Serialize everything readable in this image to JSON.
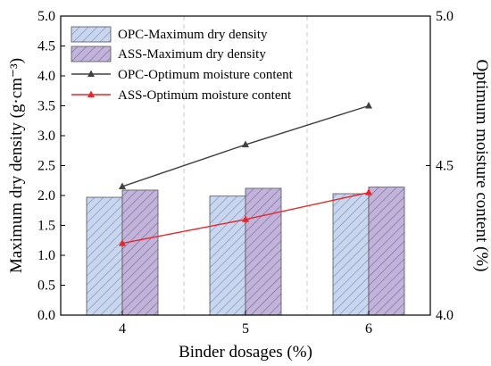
{
  "chart_data": {
    "type": "bar",
    "title": "",
    "xlabel": "Binder dosages (%)",
    "ylabel": "Maximum dry density (g·cm⁻³)",
    "y2label": "Optimum moisture content (%)",
    "categories": [
      "4",
      "5",
      "6"
    ],
    "ylim": [
      0.0,
      5.0
    ],
    "y2lim": [
      4.0,
      5.0
    ],
    "yticks": [
      "0.0",
      "0.5",
      "1.0",
      "1.5",
      "2.0",
      "2.5",
      "3.0",
      "3.5",
      "4.0",
      "4.5",
      "5.0"
    ],
    "y2ticks": [
      "4.0",
      "4.5",
      "5.0"
    ],
    "grid": "vertical dashed separators between categories",
    "legend_placement": "top-left",
    "series": [
      {
        "name": "OPC-Maximum dry density",
        "kind": "bar",
        "axis": "left",
        "color": "#c9d6ee",
        "hatch": "#7a90c0",
        "values": [
          1.97,
          1.99,
          2.03
        ]
      },
      {
        "name": "ASS-Maximum dry density",
        "kind": "bar",
        "axis": "left",
        "color": "#c2b3d9",
        "hatch": "#7d6aa6",
        "values": [
          2.09,
          2.12,
          2.14
        ]
      },
      {
        "name": "OPC-Optimum moisture content",
        "kind": "line",
        "axis": "right",
        "color": "#404040",
        "marker": "triangle",
        "values": [
          4.43,
          4.57,
          4.7
        ]
      },
      {
        "name": "ASS-Optimum moisture content",
        "kind": "line",
        "axis": "right",
        "color": "#e8262a",
        "marker": "triangle",
        "values": [
          4.24,
          4.32,
          4.41
        ]
      }
    ]
  }
}
